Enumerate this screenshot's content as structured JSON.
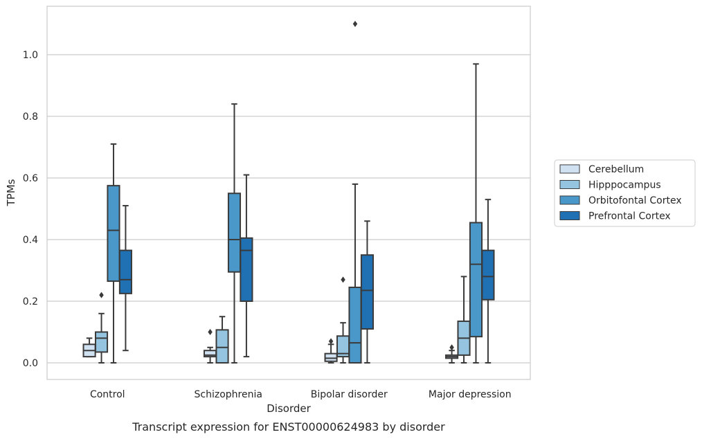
{
  "chart_data": {
    "type": "boxplot",
    "caption": "Transcript expression for ENST00000624983 by disorder",
    "xlabel": "Disorder",
    "ylabel": "TPMs",
    "ylim": [
      -0.052,
      1.16
    ],
    "yticks": [
      0.0,
      0.2,
      0.4,
      0.6,
      0.8,
      1.0
    ],
    "ytick_labels": [
      "0.0",
      "0.2",
      "0.4",
      "0.6",
      "0.8",
      "1.0"
    ],
    "grid": "horizontal",
    "legend_position": "right",
    "categories": [
      "Control",
      "Schizophrenia",
      "Bipolar disorder",
      "Major depression"
    ],
    "series": [
      {
        "name": "Cerebellum",
        "color": "#d0e1f2",
        "boxes": [
          {
            "whislo": 0.02,
            "q1": 0.02,
            "med": 0.04,
            "q3": 0.06,
            "whishi": 0.08,
            "fliers": []
          },
          {
            "whislo": 0.0,
            "q1": 0.02,
            "med": 0.025,
            "q3": 0.04,
            "whishi": 0.05,
            "fliers": [
              0.1
            ]
          },
          {
            "whislo": 0.0,
            "q1": 0.005,
            "med": 0.015,
            "q3": 0.03,
            "whishi": 0.06,
            "fliers": [
              0.07
            ]
          },
          {
            "whislo": 0.0,
            "q1": 0.015,
            "med": 0.02,
            "q3": 0.025,
            "whishi": 0.04,
            "fliers": [
              0.05
            ]
          }
        ]
      },
      {
        "name": "Hipppocampus",
        "color": "#94c4df",
        "boxes": [
          {
            "whislo": 0.0,
            "q1": 0.035,
            "med": 0.08,
            "q3": 0.1,
            "whishi": 0.16,
            "fliers": [
              0.22
            ]
          },
          {
            "whislo": 0.0,
            "q1": 0.0,
            "med": 0.05,
            "q3": 0.107,
            "whishi": 0.15,
            "fliers": []
          },
          {
            "whislo": 0.0,
            "q1": 0.02,
            "med": 0.03,
            "q3": 0.087,
            "whishi": 0.13,
            "fliers": [
              0.27
            ]
          },
          {
            "whislo": 0.0,
            "q1": 0.025,
            "med": 0.08,
            "q3": 0.135,
            "whishi": 0.28,
            "fliers": []
          }
        ]
      },
      {
        "name": "Orbitofontal Cortex",
        "color": "#4a98c9",
        "boxes": [
          {
            "whislo": 0.0,
            "q1": 0.265,
            "med": 0.43,
            "q3": 0.575,
            "whishi": 0.71,
            "fliers": []
          },
          {
            "whislo": 0.0,
            "q1": 0.295,
            "med": 0.4,
            "q3": 0.55,
            "whishi": 0.84,
            "fliers": []
          },
          {
            "whislo": 0.0,
            "q1": 0.0,
            "med": 0.065,
            "q3": 0.245,
            "whishi": 0.58,
            "fliers": [
              1.1
            ]
          },
          {
            "whislo": 0.0,
            "q1": 0.085,
            "med": 0.32,
            "q3": 0.455,
            "whishi": 0.97,
            "fliers": []
          }
        ]
      },
      {
        "name": "Prefrontal Cortex",
        "color": "#2070b4",
        "boxes": [
          {
            "whislo": 0.04,
            "q1": 0.225,
            "med": 0.27,
            "q3": 0.365,
            "whishi": 0.51,
            "fliers": []
          },
          {
            "whislo": 0.02,
            "q1": 0.2,
            "med": 0.365,
            "q3": 0.405,
            "whishi": 0.61,
            "fliers": []
          },
          {
            "whislo": 0.0,
            "q1": 0.11,
            "med": 0.235,
            "q3": 0.35,
            "whishi": 0.46,
            "fliers": []
          },
          {
            "whislo": 0.0,
            "q1": 0.205,
            "med": 0.28,
            "q3": 0.365,
            "whishi": 0.53,
            "fliers": []
          }
        ]
      }
    ]
  }
}
